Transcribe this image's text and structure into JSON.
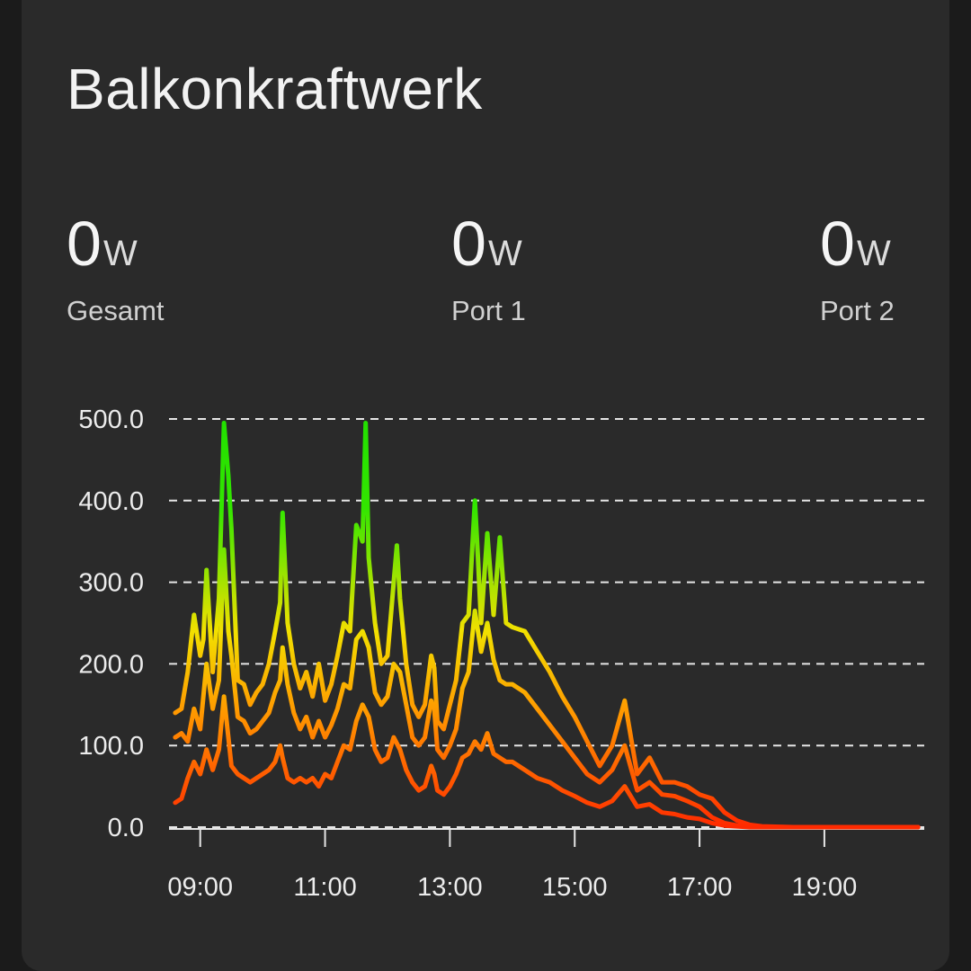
{
  "card": {
    "title": "Balkonkraftwerk"
  },
  "stats": [
    {
      "value": "0",
      "unit": "W",
      "label": "Gesamt"
    },
    {
      "value": "0",
      "unit": "W",
      "label": "Port 1"
    },
    {
      "value": "0",
      "unit": "W",
      "label": "Port 2"
    }
  ],
  "colors": {
    "background": "#1b1b1b",
    "card": "#2a2a2a",
    "grid": "#e6e6e6",
    "gradient_high": "#22e000",
    "gradient_mid": "#f2e000",
    "gradient_low": "#ff2a00"
  },
  "chart_data": {
    "type": "line",
    "title": "",
    "xlabel": "",
    "ylabel": "",
    "x_unit": "hours",
    "xlim": [
      8.5,
      20.6
    ],
    "ylim": [
      0,
      500
    ],
    "y_ticks": [
      {
        "value": 0,
        "label": "0.0"
      },
      {
        "value": 100,
        "label": "100.0"
      },
      {
        "value": 200,
        "label": "200.0"
      },
      {
        "value": 300,
        "label": "300.0"
      },
      {
        "value": 400,
        "label": "400.0"
      },
      {
        "value": 500,
        "label": "500.0"
      }
    ],
    "x_ticks": [
      {
        "value": 9,
        "label": "09:00"
      },
      {
        "value": 11,
        "label": "11:00"
      },
      {
        "value": 13,
        "label": "13:00"
      },
      {
        "value": 15,
        "label": "15:00"
      },
      {
        "value": 17,
        "label": "17:00"
      },
      {
        "value": 19,
        "label": "19:00"
      }
    ],
    "grid": true,
    "legend": "none",
    "series": [
      {
        "x": [
          8.6,
          8.7,
          8.8,
          8.9,
          9.0,
          9.05,
          9.1,
          9.2,
          9.3,
          9.38,
          9.45,
          9.5,
          9.6,
          9.7,
          9.8,
          9.9,
          10.0,
          10.1,
          10.2,
          10.28,
          10.32,
          10.4,
          10.5,
          10.6,
          10.7,
          10.8,
          10.9,
          11.0,
          11.1,
          11.2,
          11.3,
          11.4,
          11.5,
          11.6,
          11.65,
          11.7,
          11.8,
          11.9,
          12.0,
          12.1,
          12.15,
          12.2,
          12.3,
          12.4,
          12.5,
          12.6,
          12.7,
          12.75,
          12.8,
          12.9,
          13.0,
          13.1,
          13.2,
          13.3,
          13.4,
          13.45,
          13.5,
          13.6,
          13.7,
          13.8,
          13.9,
          14.0,
          14.2,
          14.4,
          14.6,
          14.8,
          15.0,
          15.2,
          15.4,
          15.6,
          15.8,
          16.0,
          16.2,
          16.4,
          16.6,
          16.8,
          17.0,
          17.2,
          17.4,
          17.6,
          17.8,
          18.0,
          18.5,
          19.0,
          19.5,
          20.0,
          20.5
        ],
        "y": [
          140,
          145,
          190,
          260,
          210,
          230,
          315,
          190,
          280,
          495,
          430,
          365,
          180,
          175,
          150,
          165,
          175,
          200,
          240,
          275,
          385,
          250,
          200,
          170,
          190,
          160,
          200,
          155,
          175,
          210,
          250,
          240,
          370,
          350,
          495,
          330,
          250,
          200,
          210,
          300,
          345,
          280,
          200,
          150,
          135,
          150,
          210,
          195,
          130,
          120,
          150,
          180,
          250,
          260,
          400,
          330,
          250,
          360,
          260,
          355,
          250,
          245,
          240,
          215,
          190,
          160,
          135,
          105,
          75,
          100,
          155,
          65,
          85,
          55,
          55,
          50,
          40,
          35,
          18,
          8,
          3,
          1,
          0,
          0,
          0,
          0,
          0
        ]
      },
      {
        "x": [
          8.6,
          8.7,
          8.8,
          8.9,
          9.0,
          9.1,
          9.2,
          9.3,
          9.38,
          9.45,
          9.5,
          9.6,
          9.7,
          9.8,
          9.9,
          10.0,
          10.1,
          10.2,
          10.28,
          10.32,
          10.4,
          10.5,
          10.6,
          10.7,
          10.8,
          10.9,
          11.0,
          11.1,
          11.2,
          11.3,
          11.4,
          11.5,
          11.6,
          11.7,
          11.8,
          11.9,
          12.0,
          12.1,
          12.2,
          12.3,
          12.4,
          12.5,
          12.6,
          12.7,
          12.75,
          12.8,
          12.9,
          13.0,
          13.1,
          13.2,
          13.3,
          13.4,
          13.5,
          13.6,
          13.7,
          13.8,
          13.9,
          14.0,
          14.2,
          14.4,
          14.6,
          14.8,
          15.0,
          15.2,
          15.4,
          15.6,
          15.8,
          16.0,
          16.2,
          16.4,
          16.6,
          16.8,
          17.0,
          17.2,
          17.4,
          17.6,
          17.8,
          18.0,
          18.5,
          19.0,
          19.5,
          20.0,
          20.5
        ],
        "y": [
          110,
          115,
          105,
          145,
          120,
          200,
          145,
          180,
          340,
          240,
          210,
          135,
          130,
          115,
          120,
          130,
          140,
          165,
          180,
          220,
          175,
          140,
          120,
          135,
          110,
          130,
          110,
          125,
          145,
          175,
          170,
          230,
          240,
          220,
          165,
          150,
          160,
          200,
          190,
          150,
          110,
          100,
          110,
          155,
          145,
          95,
          85,
          100,
          120,
          170,
          190,
          265,
          215,
          250,
          205,
          180,
          175,
          175,
          165,
          145,
          125,
          105,
          85,
          65,
          55,
          70,
          100,
          45,
          55,
          40,
          38,
          32,
          25,
          12,
          5,
          2,
          1,
          0,
          0,
          0,
          0,
          0,
          0
        ]
      },
      {
        "x": [
          8.6,
          8.7,
          8.8,
          8.9,
          9.0,
          9.1,
          9.2,
          9.3,
          9.38,
          9.45,
          9.5,
          9.6,
          9.7,
          9.8,
          9.9,
          10.0,
          10.1,
          10.2,
          10.28,
          10.32,
          10.4,
          10.5,
          10.6,
          10.7,
          10.8,
          10.9,
          11.0,
          11.1,
          11.2,
          11.3,
          11.4,
          11.5,
          11.6,
          11.7,
          11.8,
          11.9,
          12.0,
          12.1,
          12.2,
          12.3,
          12.4,
          12.5,
          12.6,
          12.7,
          12.75,
          12.8,
          12.9,
          13.0,
          13.1,
          13.2,
          13.3,
          13.4,
          13.5,
          13.6,
          13.7,
          13.8,
          13.9,
          14.0,
          14.2,
          14.4,
          14.6,
          14.8,
          15.0,
          15.2,
          15.4,
          15.6,
          15.8,
          16.0,
          16.2,
          16.4,
          16.6,
          16.8,
          17.0,
          17.2,
          17.4,
          17.6,
          17.8,
          18.0,
          18.5,
          19.0,
          19.5,
          20.0,
          20.5
        ],
        "y": [
          30,
          35,
          60,
          80,
          65,
          95,
          70,
          95,
          160,
          110,
          75,
          65,
          60,
          55,
          60,
          65,
          70,
          80,
          100,
          85,
          60,
          55,
          60,
          55,
          60,
          50,
          65,
          60,
          80,
          100,
          95,
          130,
          150,
          135,
          95,
          80,
          85,
          110,
          95,
          70,
          55,
          45,
          50,
          75,
          65,
          45,
          40,
          50,
          65,
          85,
          90,
          105,
          95,
          115,
          90,
          85,
          80,
          80,
          70,
          60,
          55,
          45,
          38,
          30,
          25,
          32,
          50,
          25,
          28,
          18,
          16,
          12,
          10,
          5,
          2,
          1,
          0,
          0,
          0,
          0,
          0,
          0,
          0
        ]
      }
    ]
  }
}
